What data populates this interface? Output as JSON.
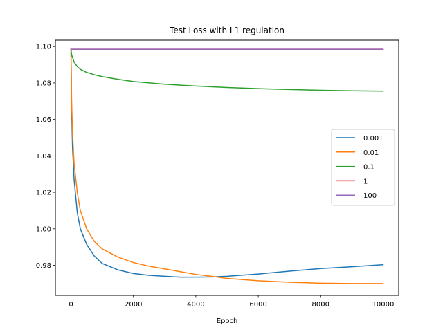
{
  "chart_data": {
    "type": "line",
    "title": "Test Loss with L1 regulation",
    "xlabel": "Epoch",
    "ylabel": "",
    "xlim": [
      -500,
      10500
    ],
    "ylim": [
      0.9635,
      1.1035
    ],
    "xticks": [
      0,
      2000,
      4000,
      6000,
      8000,
      10000
    ],
    "xtick_labels": [
      "0",
      "2000",
      "4000",
      "6000",
      "8000",
      "10000"
    ],
    "yticks": [
      0.98,
      1.0,
      1.02,
      1.04,
      1.06,
      1.08,
      1.1
    ],
    "ytick_labels": [
      "0.98",
      "1.00",
      "1.02",
      "1.04",
      "1.06",
      "1.08",
      "1.10"
    ],
    "grid": false,
    "legend_position": "center-right",
    "series": [
      {
        "name": "0.001",
        "color": "#1f77b4",
        "x": [
          0,
          20,
          50,
          100,
          200,
          300,
          500,
          750,
          1000,
          1500,
          2000,
          2500,
          3000,
          3500,
          4000,
          4500,
          5000,
          6000,
          7000,
          8000,
          9000,
          10000
        ],
        "y": [
          1.0985,
          1.065,
          1.044,
          1.027,
          1.009,
          1.0,
          0.9915,
          0.985,
          0.981,
          0.9775,
          0.9755,
          0.9745,
          0.974,
          0.9735,
          0.9735,
          0.9736,
          0.974,
          0.9752,
          0.9768,
          0.9782,
          0.9792,
          0.9803
        ]
      },
      {
        "name": "0.01",
        "color": "#ff7f0e",
        "x": [
          0,
          20,
          50,
          100,
          200,
          300,
          500,
          750,
          1000,
          1500,
          2000,
          2500,
          3000,
          3500,
          4000,
          4500,
          5000,
          6000,
          7000,
          8000,
          9000,
          10000
        ],
        "y": [
          1.0985,
          1.07,
          1.052,
          1.036,
          1.02,
          1.01,
          1.0,
          0.993,
          0.989,
          0.9845,
          0.9815,
          0.9795,
          0.978,
          0.9765,
          0.975,
          0.974,
          0.9728,
          0.9715,
          0.9707,
          0.9702,
          0.97,
          0.97
        ]
      },
      {
        "name": "0.1",
        "color": "#2ca02c",
        "x": [
          0,
          20,
          50,
          100,
          200,
          300,
          500,
          750,
          1000,
          1500,
          2000,
          3000,
          4000,
          5000,
          6000,
          7000,
          8000,
          9000,
          10000
        ],
        "y": [
          1.0985,
          1.0955,
          1.094,
          1.0915,
          1.089,
          1.0875,
          1.0858,
          1.0845,
          1.0835,
          1.082,
          1.0808,
          1.0793,
          1.0783,
          1.0775,
          1.0769,
          1.0764,
          1.076,
          1.0757,
          1.0755
        ]
      },
      {
        "name": "1",
        "color": "#d62728",
        "x": [
          0,
          10000
        ],
        "y": [
          1.0985,
          1.0985
        ]
      },
      {
        "name": "100",
        "color": "#9467bd",
        "x": [
          0,
          10000
        ],
        "y": [
          1.0985,
          1.0985
        ]
      }
    ]
  }
}
